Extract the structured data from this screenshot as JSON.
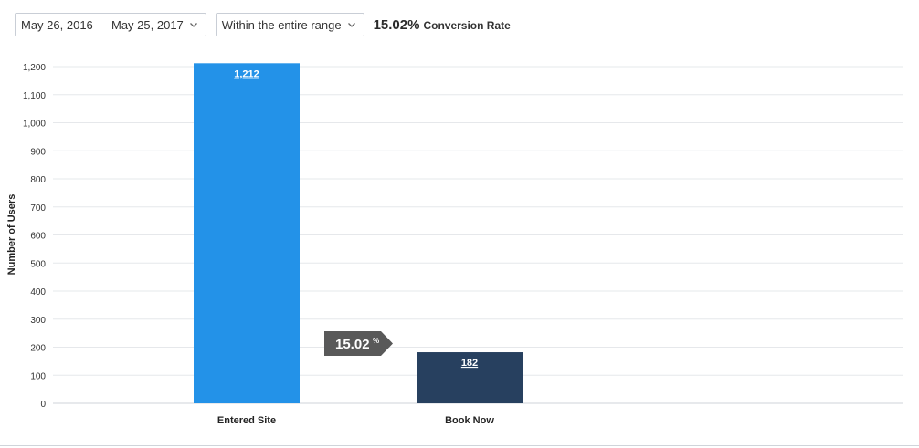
{
  "toolbar": {
    "date_range": "May 26, 2016 — May 25, 2017",
    "range_mode": "Within the entire range",
    "conversion_rate": "15.02%",
    "conversion_label": "Conversion Rate"
  },
  "colors": {
    "bar_entered_site": "#2392e8",
    "bar_book_now": "#27405f",
    "connector": "#595959",
    "grid": "#e6e8eb"
  },
  "chart_data": {
    "type": "bar",
    "ylabel": "Number of Users",
    "xlabel": "",
    "categories": [
      "Entered Site",
      "Book Now"
    ],
    "values": [
      1212,
      182
    ],
    "value_labels": [
      "1,212",
      "182"
    ],
    "ylim": [
      0,
      1200
    ],
    "yticks": [
      0,
      100,
      200,
      300,
      400,
      500,
      600,
      700,
      800,
      900,
      1000,
      1100,
      1200
    ],
    "ytick_labels": [
      "0",
      "100",
      "200",
      "300",
      "400",
      "500",
      "600",
      "700",
      "800",
      "900",
      "1,000",
      "1,100",
      "1,200"
    ],
    "grid": true,
    "legend": "none",
    "step_conversion": {
      "value": "15.02",
      "unit": "%"
    }
  }
}
